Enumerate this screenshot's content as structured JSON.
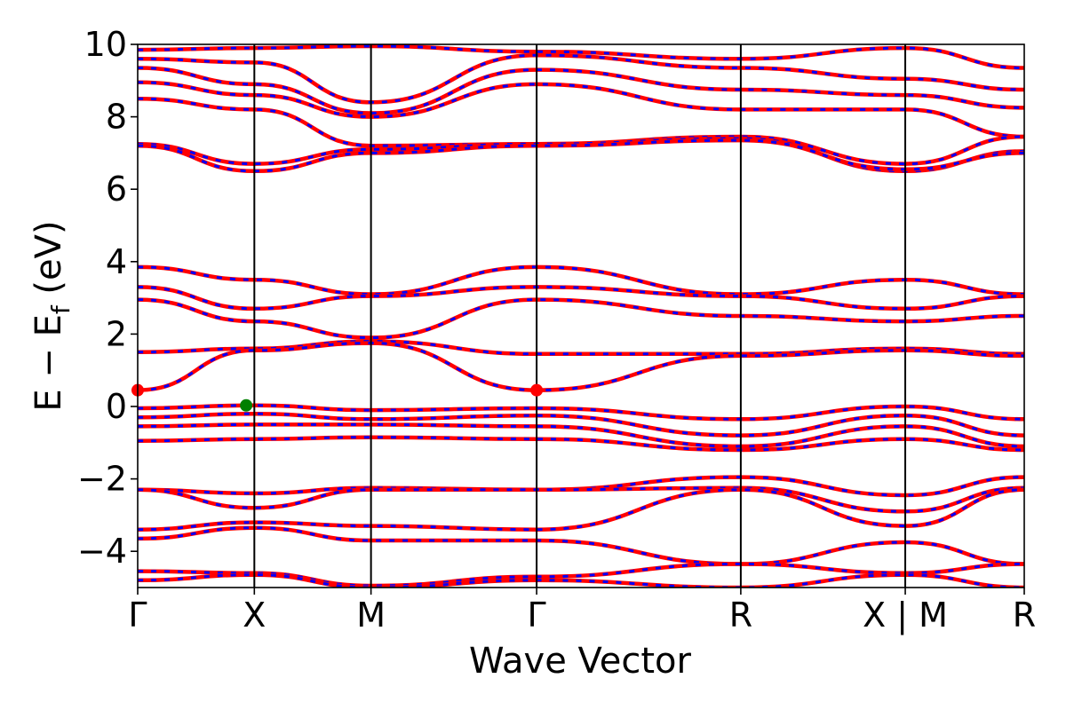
{
  "chart_data": {
    "type": "line",
    "xlabel": "Wave Vector",
    "ylabel_main": "E − E",
    "ylabel_sub": "f",
    "ylabel_unit": "(eV)",
    "ylim": [
      -5,
      10
    ],
    "yticks": [
      -4,
      -2,
      0,
      2,
      4,
      6,
      8,
      10
    ],
    "ytick_labels": [
      "−4",
      "−2",
      "0",
      "2",
      "4",
      "6",
      "8",
      "10"
    ],
    "xlim": [
      0,
      7.6
    ],
    "k_points": [
      {
        "label": "Γ",
        "x": 0
      },
      {
        "label": "X",
        "x": 1.0
      },
      {
        "label": "M",
        "x": 2.0
      },
      {
        "label": "Γ",
        "x": 3.42
      },
      {
        "label": "R",
        "x": 5.17
      },
      {
        "label": "X | M",
        "x": 6.58
      },
      {
        "label": "R",
        "x": 7.6
      }
    ],
    "grid": false,
    "band_colors": {
      "spin_up": "#0000ff",
      "spin_down": "#ff0000"
    },
    "highlight_points": [
      {
        "name": "cbm",
        "x": 0.0,
        "y": 0.45,
        "color": "#ff0000"
      },
      {
        "name": "cbm",
        "x": 3.42,
        "y": 0.45,
        "color": "#ff0000"
      },
      {
        "name": "vbm",
        "x": 0.93,
        "y": 0.03,
        "color": "#008000"
      }
    ],
    "series": [
      {
        "values": [
          [
            0,
            9.85
          ],
          [
            1,
            9.9
          ],
          [
            2,
            9.95
          ],
          [
            3.42,
            9.8
          ],
          [
            5.17,
            9.6
          ],
          [
            6.58,
            9.9
          ],
          [
            7.6,
            9.35
          ]
        ]
      },
      {
        "values": [
          [
            0,
            9.6
          ],
          [
            1,
            9.5
          ],
          [
            2,
            8.4
          ],
          [
            3.42,
            9.7
          ],
          [
            5.17,
            9.35
          ],
          [
            6.58,
            9.05
          ],
          [
            7.6,
            8.75
          ]
        ]
      },
      {
        "values": [
          [
            0,
            9.35
          ],
          [
            1,
            8.9
          ],
          [
            2,
            8.1
          ],
          [
            3.42,
            9.3
          ],
          [
            5.17,
            8.75
          ],
          [
            6.58,
            8.6
          ],
          [
            7.6,
            8.25
          ]
        ]
      },
      {
        "values": [
          [
            0,
            8.95
          ],
          [
            1,
            8.6
          ],
          [
            2,
            8.0
          ],
          [
            3.42,
            8.9
          ],
          [
            5.17,
            8.2
          ],
          [
            6.58,
            8.2
          ],
          [
            7.6,
            7.45
          ]
        ]
      },
      {
        "values": [
          [
            0,
            8.5
          ],
          [
            1,
            8.2
          ],
          [
            2,
            7.2
          ],
          [
            3.42,
            7.25
          ],
          [
            5.17,
            7.45
          ],
          [
            6.58,
            6.7
          ],
          [
            7.6,
            7.45
          ]
        ]
      },
      {
        "values": [
          [
            0,
            7.25
          ],
          [
            1,
            6.7
          ],
          [
            2,
            7.1
          ],
          [
            3.42,
            7.25
          ],
          [
            5.17,
            7.4
          ],
          [
            6.58,
            6.5
          ],
          [
            7.6,
            7.05
          ]
        ]
      },
      {
        "values": [
          [
            0,
            7.2
          ],
          [
            1,
            6.5
          ],
          [
            2,
            7.0
          ],
          [
            3.42,
            7.2
          ],
          [
            5.17,
            7.35
          ],
          [
            6.58,
            6.55
          ],
          [
            7.6,
            7.0
          ]
        ]
      },
      {
        "values": [
          [
            0,
            3.85
          ],
          [
            1,
            3.5
          ],
          [
            2,
            3.1
          ],
          [
            3.42,
            3.85
          ],
          [
            5.17,
            3.1
          ],
          [
            6.58,
            3.5
          ],
          [
            7.6,
            3.1
          ]
        ]
      },
      {
        "values": [
          [
            0,
            3.3
          ],
          [
            1,
            2.7
          ],
          [
            2,
            3.05
          ],
          [
            3.42,
            3.3
          ],
          [
            5.17,
            3.05
          ],
          [
            6.58,
            2.7
          ],
          [
            7.6,
            3.05
          ]
        ]
      },
      {
        "values": [
          [
            0,
            2.95
          ],
          [
            1,
            2.35
          ],
          [
            2,
            1.9
          ],
          [
            3.42,
            2.95
          ],
          [
            5.17,
            2.5
          ],
          [
            6.58,
            2.35
          ],
          [
            7.6,
            2.5
          ]
        ]
      },
      {
        "values": [
          [
            0,
            1.5
          ],
          [
            1,
            1.6
          ],
          [
            2,
            1.8
          ],
          [
            3.42,
            1.45
          ],
          [
            5.17,
            1.45
          ],
          [
            6.58,
            1.6
          ],
          [
            7.6,
            1.45
          ]
        ]
      },
      {
        "values": [
          [
            0,
            0.45
          ],
          [
            1,
            1.55
          ],
          [
            2,
            1.75
          ],
          [
            3.42,
            0.45
          ],
          [
            5.17,
            1.4
          ],
          [
            6.58,
            1.55
          ],
          [
            7.6,
            1.4
          ]
        ]
      },
      {
        "values": [
          [
            0,
            -0.05
          ],
          [
            1,
            0.03
          ],
          [
            2,
            -0.1
          ],
          [
            3.42,
            -0.05
          ],
          [
            5.17,
            -0.35
          ],
          [
            6.58,
            0.0
          ],
          [
            7.6,
            -0.35
          ]
        ]
      },
      {
        "values": [
          [
            0,
            -0.3
          ],
          [
            1,
            -0.2
          ],
          [
            2,
            -0.35
          ],
          [
            3.42,
            -0.25
          ],
          [
            5.17,
            -0.8
          ],
          [
            6.58,
            -0.25
          ],
          [
            7.6,
            -0.8
          ]
        ]
      },
      {
        "values": [
          [
            0,
            -0.55
          ],
          [
            1,
            -0.5
          ],
          [
            2,
            -0.5
          ],
          [
            3.42,
            -0.55
          ],
          [
            5.17,
            -1.1
          ],
          [
            6.58,
            -0.55
          ],
          [
            7.6,
            -1.1
          ]
        ]
      },
      {
        "values": [
          [
            0,
            -0.95
          ],
          [
            1,
            -0.9
          ],
          [
            2,
            -0.85
          ],
          [
            3.42,
            -0.9
          ],
          [
            5.17,
            -1.2
          ],
          [
            6.58,
            -0.9
          ],
          [
            7.6,
            -1.2
          ]
        ]
      },
      {
        "values": [
          [
            0,
            -2.3
          ],
          [
            1,
            -2.4
          ],
          [
            2,
            -2.25
          ],
          [
            3.42,
            -2.3
          ],
          [
            5.17,
            -1.95
          ],
          [
            6.58,
            -2.45
          ],
          [
            7.6,
            -1.95
          ]
        ]
      },
      {
        "values": [
          [
            0,
            -2.3
          ],
          [
            1,
            -2.8
          ],
          [
            2,
            -2.3
          ],
          [
            3.42,
            -2.3
          ],
          [
            5.17,
            -2.25
          ],
          [
            6.58,
            -2.9
          ],
          [
            7.6,
            -2.25
          ]
        ]
      },
      {
        "values": [
          [
            0,
            -3.4
          ],
          [
            1,
            -3.2
          ],
          [
            2,
            -3.3
          ],
          [
            3.42,
            -3.4
          ],
          [
            5.17,
            -2.3
          ],
          [
            6.58,
            -3.3
          ],
          [
            7.6,
            -2.3
          ]
        ]
      },
      {
        "values": [
          [
            0,
            -3.65
          ],
          [
            1,
            -3.35
          ],
          [
            2,
            -3.7
          ],
          [
            3.42,
            -3.7
          ],
          [
            5.17,
            -4.35
          ],
          [
            6.58,
            -3.75
          ],
          [
            7.6,
            -4.35
          ]
        ]
      },
      {
        "values": [
          [
            0,
            -4.55
          ],
          [
            1,
            -4.6
          ],
          [
            2,
            -4.95
          ],
          [
            3.42,
            -4.7
          ],
          [
            5.17,
            -4.35
          ],
          [
            6.58,
            -4.6
          ],
          [
            7.6,
            -4.35
          ]
        ]
      },
      {
        "values": [
          [
            0,
            -4.8
          ],
          [
            1,
            -4.65
          ],
          [
            2,
            -5.0
          ],
          [
            3.42,
            -4.8
          ],
          [
            5.17,
            -5.0
          ],
          [
            6.58,
            -4.65
          ],
          [
            7.6,
            -5.0
          ]
        ]
      }
    ]
  }
}
